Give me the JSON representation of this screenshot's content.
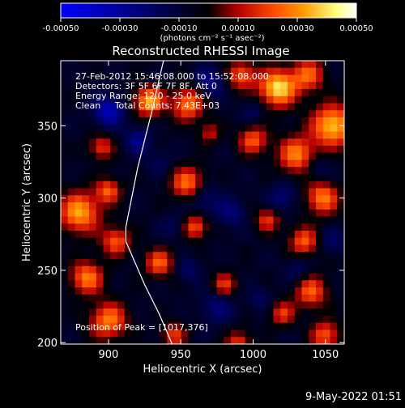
{
  "chart_data": {
    "type": "heatmap",
    "title": "Reconstructed RHESSI Image",
    "xlabel": "Heliocentric X (arcsec)",
    "ylabel": "Heliocentric Y (arcsec)",
    "xlim": [
      867,
      1063
    ],
    "ylim": [
      199,
      395
    ],
    "x_ticks": [
      "900",
      "950",
      "1000",
      "1050"
    ],
    "y_ticks": [
      "200",
      "250",
      "300",
      "350"
    ],
    "colorbar": {
      "range": [
        -0.0005,
        0.0005
      ],
      "tick_values": [
        -0.0005,
        -0.0003,
        -0.0001,
        0.0001,
        0.0003,
        0.0005
      ],
      "ticks": [
        "-0.00050",
        "-0.00030",
        "-0.00010",
        "0.00010",
        "0.00030",
        "0.00050"
      ],
      "unit_label": "(photons cm⁻² s⁻¹ asec⁻²)",
      "stops": [
        "#0000ff",
        "#000000",
        "#b40000",
        "#ff4a00",
        "#ff9a00",
        "#ffff80",
        "#ffffff"
      ]
    },
    "annotations": [
      "27-Feb-2012 15:46:08.000 to 15:52:08.000",
      "Detectors: 3F 5F 6F 7F 8F, Att 0",
      "Energy Range: 12.0 - 25.0 keV",
      "Clean     Total Counts: 7.43E+03"
    ],
    "peak_label": "Position of Peak = [1017,376]",
    "peak": [
      1017,
      376
    ],
    "limb_curve": [
      [
        938,
        395
      ],
      [
        930,
        360
      ],
      [
        920,
        320
      ],
      [
        912,
        280
      ],
      [
        912,
        270
      ],
      [
        925,
        240
      ],
      [
        935,
        220
      ],
      [
        944,
        199
      ]
    ],
    "hot_spots": [
      {
        "x": 1017,
        "y": 376,
        "v": 0.00048,
        "r": 9
      },
      {
        "x": 1055,
        "y": 350,
        "v": 0.00045,
        "r": 10
      },
      {
        "x": 1038,
        "y": 385,
        "v": 0.0003,
        "r": 8
      },
      {
        "x": 928,
        "y": 367,
        "v": 0.00042,
        "r": 7
      },
      {
        "x": 955,
        "y": 365,
        "v": 0.00035,
        "r": 8
      },
      {
        "x": 992,
        "y": 385,
        "v": 0.0003,
        "r": 7
      },
      {
        "x": 1000,
        "y": 340,
        "v": 0.0003,
        "r": 7
      },
      {
        "x": 1030,
        "y": 330,
        "v": 0.00035,
        "r": 9
      },
      {
        "x": 1048,
        "y": 300,
        "v": 0.00035,
        "r": 8
      },
      {
        "x": 880,
        "y": 290,
        "v": 0.0004,
        "r": 10
      },
      {
        "x": 895,
        "y": 335,
        "v": 0.00025,
        "r": 6
      },
      {
        "x": 900,
        "y": 305,
        "v": 0.0003,
        "r": 6
      },
      {
        "x": 905,
        "y": 270,
        "v": 0.0003,
        "r": 7
      },
      {
        "x": 885,
        "y": 245,
        "v": 0.00035,
        "r": 8
      },
      {
        "x": 900,
        "y": 215,
        "v": 0.00035,
        "r": 9
      },
      {
        "x": 935,
        "y": 255,
        "v": 0.0003,
        "r": 7
      },
      {
        "x": 955,
        "y": 310,
        "v": 0.00035,
        "r": 8
      },
      {
        "x": 960,
        "y": 280,
        "v": 0.0003,
        "r": 6
      },
      {
        "x": 980,
        "y": 240,
        "v": 0.00025,
        "r": 6
      },
      {
        "x": 990,
        "y": 200,
        "v": 0.00025,
        "r": 6
      },
      {
        "x": 1010,
        "y": 285,
        "v": 0.00025,
        "r": 6
      },
      {
        "x": 1035,
        "y": 270,
        "v": 0.0003,
        "r": 7
      },
      {
        "x": 1040,
        "y": 235,
        "v": 0.0003,
        "r": 8
      },
      {
        "x": 1050,
        "y": 205,
        "v": 0.0003,
        "r": 7
      },
      {
        "x": 1020,
        "y": 220,
        "v": 0.00025,
        "r": 6
      },
      {
        "x": 970,
        "y": 345,
        "v": 0.0002,
        "r": 5
      },
      {
        "x": 945,
        "y": 205,
        "v": 0.00025,
        "r": 6
      }
    ],
    "cold_spots": [
      {
        "x": 900,
        "y": 360,
        "v": -0.0003,
        "r": 7
      },
      {
        "x": 920,
        "y": 340,
        "v": -0.0002,
        "r": 6
      },
      {
        "x": 970,
        "y": 380,
        "v": -0.0002,
        "r": 7
      },
      {
        "x": 965,
        "y": 300,
        "v": -0.00015,
        "r": 8
      },
      {
        "x": 945,
        "y": 280,
        "v": -0.0001,
        "r": 6
      },
      {
        "x": 985,
        "y": 290,
        "v": -0.00015,
        "r": 7
      },
      {
        "x": 975,
        "y": 225,
        "v": -0.00015,
        "r": 8
      },
      {
        "x": 1005,
        "y": 230,
        "v": -0.0001,
        "r": 6
      },
      {
        "x": 1020,
        "y": 300,
        "v": -0.00015,
        "r": 7
      },
      {
        "x": 1045,
        "y": 320,
        "v": -0.00012,
        "r": 6
      },
      {
        "x": 1030,
        "y": 250,
        "v": -0.00012,
        "r": 6
      },
      {
        "x": 955,
        "y": 250,
        "v": -0.00012,
        "r": 6
      },
      {
        "x": 1000,
        "y": 360,
        "v": -0.0001,
        "r": 6
      },
      {
        "x": 935,
        "y": 325,
        "v": -0.0001,
        "r": 6
      },
      {
        "x": 1055,
        "y": 270,
        "v": -0.00012,
        "r": 6
      }
    ]
  },
  "footer": {
    "timestamp": "9-May-2022 01:51"
  }
}
